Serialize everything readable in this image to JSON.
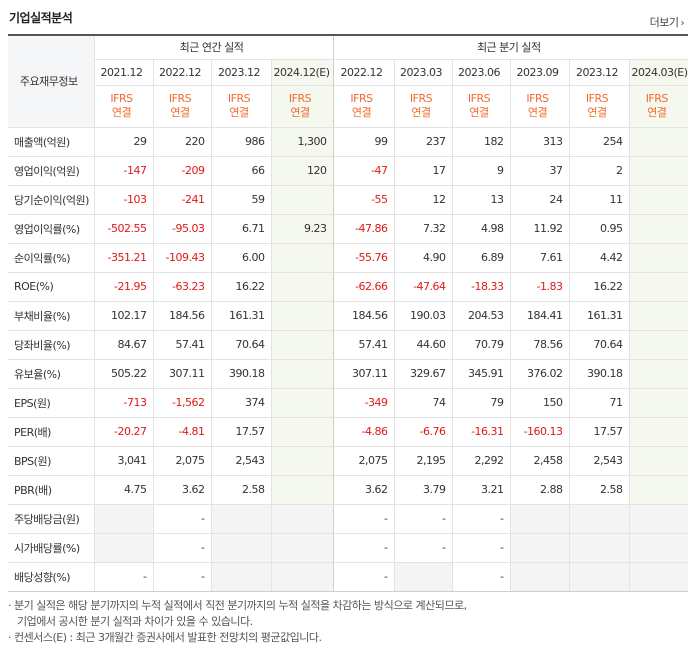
{
  "header": {
    "title": "기업실적분석",
    "more_label": "더보기",
    "more_arrow": "›"
  },
  "table": {
    "corner_label": "주요재무정보",
    "groups": {
      "annual": "최근 연간 실적",
      "quarterly": "최근 분기 실적"
    },
    "periods": [
      "2021.12",
      "2022.12",
      "2023.12",
      "2024.12(E)",
      "2022.12",
      "2023.03",
      "2023.06",
      "2023.09",
      "2023.12",
      "2024.03(E)"
    ],
    "ifrs_top": "IFRS",
    "ifrs_bottom": "연결",
    "rows": [
      {
        "label": "매출액(억원)",
        "values": [
          "29",
          "220",
          "986",
          "1,300",
          "99",
          "237",
          "182",
          "313",
          "254",
          ""
        ]
      },
      {
        "label": "영업이익(억원)",
        "values": [
          "-147",
          "-209",
          "66",
          "120",
          "-47",
          "17",
          "9",
          "37",
          "2",
          ""
        ]
      },
      {
        "label": "당기순이익(억원)",
        "values": [
          "-103",
          "-241",
          "59",
          "",
          "-55",
          "12",
          "13",
          "24",
          "11",
          ""
        ]
      },
      {
        "label": "영업이익률(%)",
        "values": [
          "-502.55",
          "-95.03",
          "6.71",
          "9.23",
          "-47.86",
          "7.32",
          "4.98",
          "11.92",
          "0.95",
          ""
        ]
      },
      {
        "label": "순이익률(%)",
        "values": [
          "-351.21",
          "-109.43",
          "6.00",
          "",
          "-55.76",
          "4.90",
          "6.89",
          "7.61",
          "4.42",
          ""
        ]
      },
      {
        "label": "ROE(%)",
        "values": [
          "-21.95",
          "-63.23",
          "16.22",
          "",
          "-62.66",
          "-47.64",
          "-18.33",
          "-1.83",
          "16.22",
          ""
        ]
      },
      {
        "label": "부채비율(%)",
        "values": [
          "102.17",
          "184.56",
          "161.31",
          "",
          "184.56",
          "190.03",
          "204.53",
          "184.41",
          "161.31",
          ""
        ]
      },
      {
        "label": "당좌비율(%)",
        "values": [
          "84.67",
          "57.41",
          "70.64",
          "",
          "57.41",
          "44.60",
          "70.79",
          "78.56",
          "70.64",
          ""
        ]
      },
      {
        "label": "유보율(%)",
        "values": [
          "505.22",
          "307.11",
          "390.18",
          "",
          "307.11",
          "329.67",
          "345.91",
          "376.02",
          "390.18",
          ""
        ]
      },
      {
        "label": "EPS(원)",
        "values": [
          "-713",
          "-1,562",
          "374",
          "",
          "-349",
          "74",
          "79",
          "150",
          "71",
          ""
        ]
      },
      {
        "label": "PER(배)",
        "values": [
          "-20.27",
          "-4.81",
          "17.57",
          "",
          "-4.86",
          "-6.76",
          "-16.31",
          "-160.13",
          "17.57",
          ""
        ]
      },
      {
        "label": "BPS(원)",
        "values": [
          "3,041",
          "2,075",
          "2,543",
          "",
          "2,075",
          "2,195",
          "2,292",
          "2,458",
          "2,543",
          ""
        ]
      },
      {
        "label": "PBR(배)",
        "values": [
          "4.75",
          "3.62",
          "2.58",
          "",
          "3.62",
          "3.79",
          "3.21",
          "2.88",
          "2.58",
          ""
        ]
      },
      {
        "label": "주당배당금(원)",
        "values": [
          "",
          "-",
          "",
          "",
          "-",
          "-",
          "-",
          "",
          "",
          ""
        ]
      },
      {
        "label": "시가배당률(%)",
        "values": [
          "",
          "-",
          "",
          "",
          "-",
          "-",
          "-",
          "",
          "",
          ""
        ]
      },
      {
        "label": "배당성향(%)",
        "values": [
          "-",
          "-",
          "",
          "",
          "-",
          "",
          "-",
          "",
          "",
          ""
        ]
      }
    ]
  },
  "notes": {
    "line1": "· 분기 실적은 해당 분기까지의 누적 실적에서 직전 분기까지의 누적 실적을 차감하는 방식으로 계산되므로,",
    "line2": "기업에서 공시한 분기 실적과 차이가 있을 수 있습니다.",
    "line3": "· 컨센서스(E) : 최근 3개월간 증권사에서 발표한 전망치의 평균값입니다."
  },
  "colors": {
    "negative": "#e01818",
    "ifrs": "#f26a2b",
    "estimate_bg": "#f4f8ef"
  }
}
